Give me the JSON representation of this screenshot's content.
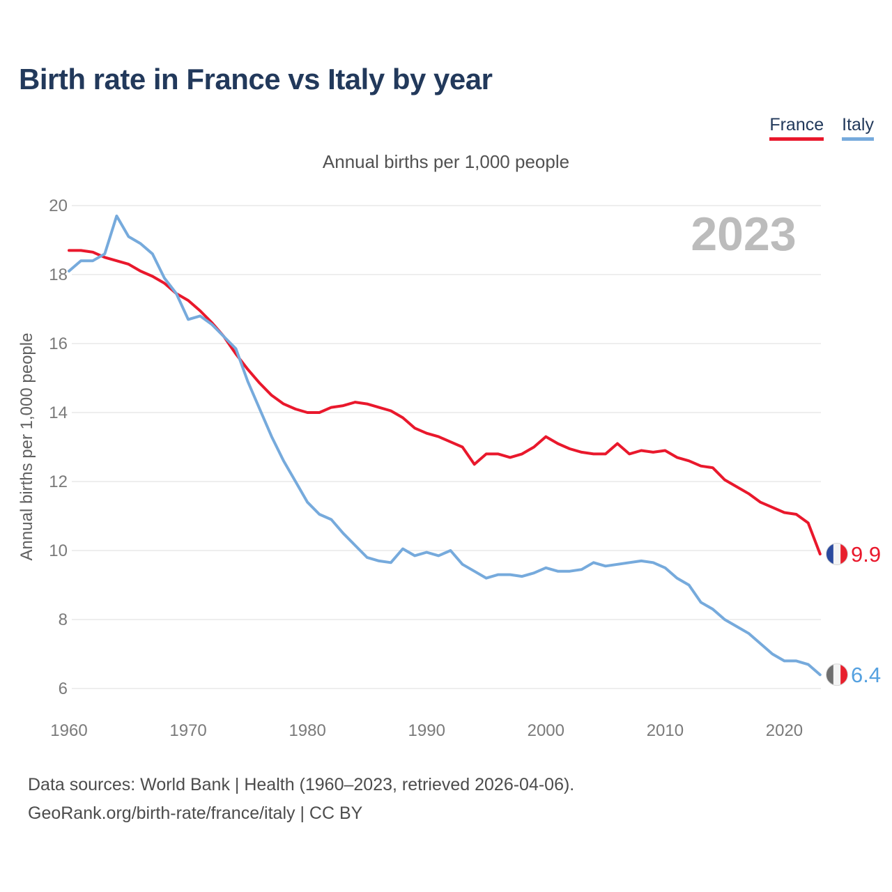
{
  "header": {
    "title": "Birth rate in France vs Italy by year",
    "subtitle": "Annual births per 1,000 people"
  },
  "legend": {
    "items": [
      {
        "label": "France",
        "color": "#e9182c"
      },
      {
        "label": "Italy",
        "color": "#76aadc"
      }
    ]
  },
  "footer": {
    "line1": "Data sources: World Bank | Health (1960–2023, retrieved 2026-04-06).",
    "line2": "GeoRank.org/birth-rate/france/italy | CC BY"
  },
  "chart_data": {
    "type": "line",
    "title": "Annual births per 1,000 people",
    "ylabel": "Annual births per 1,000 people",
    "xlabel": "",
    "year_label": "2023",
    "grid": "horizontal-only",
    "ylim": [
      6,
      20
    ],
    "yticks": [
      6,
      8,
      10,
      12,
      14,
      16,
      18,
      20
    ],
    "xticks": [
      1960,
      1970,
      1980,
      1990,
      2000,
      2010,
      2020
    ],
    "x": [
      1960,
      1961,
      1962,
      1963,
      1964,
      1965,
      1966,
      1967,
      1968,
      1969,
      1970,
      1971,
      1972,
      1973,
      1974,
      1975,
      1976,
      1977,
      1978,
      1979,
      1980,
      1981,
      1982,
      1983,
      1984,
      1985,
      1986,
      1987,
      1988,
      1989,
      1990,
      1991,
      1992,
      1993,
      1994,
      1995,
      1996,
      1997,
      1998,
      1999,
      2000,
      2001,
      2002,
      2003,
      2004,
      2005,
      2006,
      2007,
      2008,
      2009,
      2010,
      2011,
      2012,
      2013,
      2014,
      2015,
      2016,
      2017,
      2018,
      2019,
      2020,
      2021,
      2022,
      2023
    ],
    "series": [
      {
        "name": "France",
        "color": "#e9182c",
        "values": [
          18.7,
          18.7,
          18.65,
          18.5,
          18.4,
          18.3,
          18.1,
          17.95,
          17.75,
          17.45,
          17.25,
          16.95,
          16.6,
          16.2,
          15.7,
          15.25,
          14.85,
          14.5,
          14.25,
          14.1,
          14.0,
          14.0,
          14.15,
          14.2,
          14.3,
          14.25,
          14.15,
          14.05,
          13.85,
          13.55,
          13.4,
          13.3,
          13.15,
          13.0,
          12.5,
          12.8,
          12.8,
          12.7,
          12.8,
          13.0,
          13.3,
          13.1,
          12.95,
          12.85,
          12.8,
          12.8,
          13.1,
          12.8,
          12.9,
          12.85,
          12.9,
          12.7,
          12.6,
          12.45,
          12.4,
          12.05,
          11.85,
          11.65,
          11.4,
          11.25,
          11.1,
          11.05,
          10.8,
          9.9
        ]
      },
      {
        "name": "Italy",
        "color": "#76aadc",
        "values": [
          18.1,
          18.4,
          18.4,
          18.6,
          19.7,
          19.1,
          18.9,
          18.6,
          17.9,
          17.45,
          16.7,
          16.8,
          16.55,
          16.2,
          15.85,
          14.9,
          14.1,
          13.3,
          12.6,
          12.0,
          11.4,
          11.05,
          10.9,
          10.5,
          10.15,
          9.8,
          9.7,
          9.65,
          10.05,
          9.85,
          9.95,
          9.85,
          10.0,
          9.6,
          9.4,
          9.2,
          9.3,
          9.3,
          9.25,
          9.35,
          9.5,
          9.4,
          9.4,
          9.45,
          9.65,
          9.55,
          9.6,
          9.65,
          9.7,
          9.65,
          9.5,
          9.2,
          9.0,
          8.5,
          8.3,
          8.0,
          7.8,
          7.6,
          7.3,
          7.0,
          6.8,
          6.8,
          6.7,
          6.4
        ]
      }
    ],
    "end_markers": [
      {
        "series": "France",
        "label": "9.9",
        "label_color": "#e9182c",
        "flag_name": "france-flag",
        "flag_colors": [
          "#2b4a9e",
          "#f4f4f4",
          "#e8202d"
        ]
      },
      {
        "series": "Italy",
        "label": "6.4",
        "label_color": "#55a1e0",
        "flag_name": "italy-flag",
        "flag_colors": [
          "#6f6f6f",
          "#f4f4f4",
          "#e8202d"
        ]
      }
    ]
  }
}
